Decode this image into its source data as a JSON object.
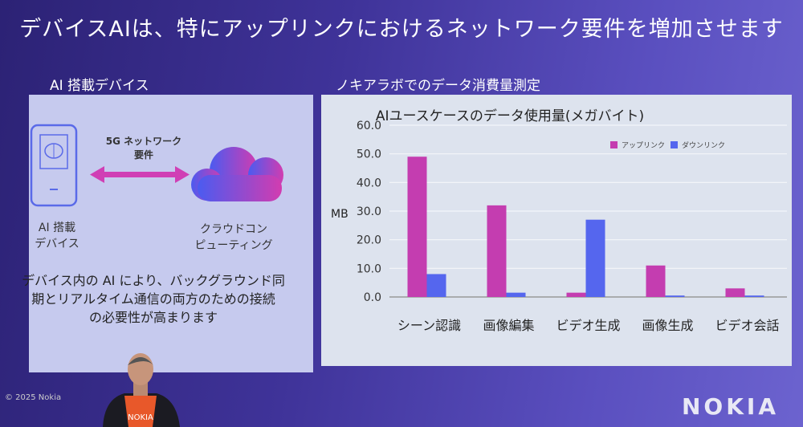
{
  "slide": {
    "title": "デバイスAIは、特にアップリンクにおけるネットワーク要件を増加させます",
    "left_heading": "AI 搭載デバイス",
    "right_heading": "ノキアラボでのデータ消費量測定",
    "network_label_1": "5G ネットワーク",
    "network_label_2": "要件",
    "device_label_1": "AI 搭載",
    "device_label_2": "デバイス",
    "cloud_label_1": "クラウドコン",
    "cloud_label_2": "ピューティング",
    "body_1": "デバイス内の AI により、バックグラウンド同",
    "body_2": "期とリアルタイム通信の両方のための接続",
    "body_3": "の必要性が高まります",
    "copyright": "© 2025 Nokia",
    "logo": "NOKIA",
    "shirt_logo": "NOKIA"
  },
  "colors": {
    "uplink": "#c43db0",
    "downlink": "#5566ee"
  },
  "chart_data": {
    "type": "bar",
    "title": "AIユースケースのデータ使用量(メガバイト)",
    "xlabel": "",
    "ylabel": "MB",
    "ylim": [
      0,
      60
    ],
    "yticks": [
      "0.0",
      "10.0",
      "20.0",
      "30.0",
      "40.0",
      "50.0",
      "60.0"
    ],
    "grid": true,
    "legend_position": "top-right",
    "categories": [
      "シーン認識",
      "画像編集",
      "ビデオ生成",
      "画像生成",
      "ビデオ会話"
    ],
    "series": [
      {
        "name": "アップリンク",
        "values": [
          49,
          32,
          1.5,
          11,
          3
        ]
      },
      {
        "name": "ダウンリンク",
        "values": [
          8,
          1.5,
          27,
          0.5,
          0.5
        ]
      }
    ]
  }
}
